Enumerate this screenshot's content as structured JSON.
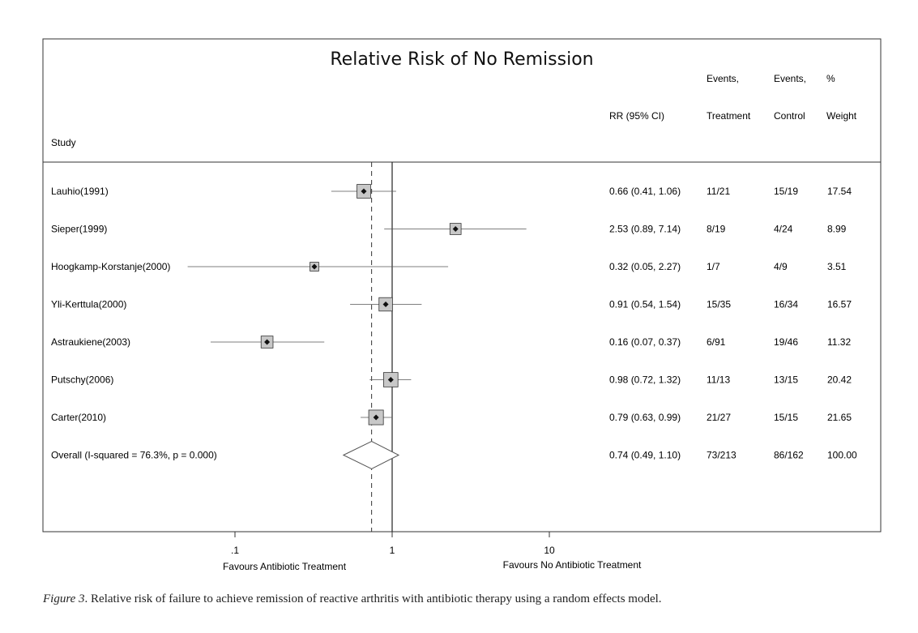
{
  "chart_data": {
    "type": "forest",
    "title": "Relative Risk of No Remission",
    "scale": "log",
    "xlim": [
      0.063,
      20
    ],
    "reference_line": 1,
    "overall_line": 0.74,
    "xticks": [
      {
        "value": 0.1,
        "label": ".1"
      },
      {
        "value": 1,
        "label": "1"
      },
      {
        "value": 10,
        "label": "10"
      }
    ],
    "xlabel_left": "Favours Antibiotic Treatment",
    "xlabel_right": "Favours No Antibiotic Treatment",
    "headers": {
      "study": "Study",
      "rr": "RR (95% CI)",
      "events_t_1": "Events,",
      "events_t_2": "Treatment",
      "events_c_1": "Events,",
      "events_c_2": "Control",
      "weight_1": "%",
      "weight_2": "Weight"
    },
    "studies": [
      {
        "name": "Lauhio(1991)",
        "rr": 0.66,
        "lo": 0.41,
        "hi": 1.06,
        "rr_text": "0.66 (0.41, 1.06)",
        "events_t": "11/21",
        "events_c": "15/19",
        "weight": "17.54"
      },
      {
        "name": "Sieper(1999)",
        "rr": 2.53,
        "lo": 0.89,
        "hi": 7.14,
        "rr_text": "2.53 (0.89, 7.14)",
        "events_t": "8/19",
        "events_c": "4/24",
        "weight": "8.99"
      },
      {
        "name": "Hoogkamp-Korstanje(2000)",
        "rr": 0.32,
        "lo": 0.05,
        "hi": 2.27,
        "rr_text": "0.32 (0.05, 2.27)",
        "events_t": "1/7",
        "events_c": "4/9",
        "weight": "3.51"
      },
      {
        "name": "Yli-Kerttula(2000)",
        "rr": 0.91,
        "lo": 0.54,
        "hi": 1.54,
        "rr_text": "0.91 (0.54, 1.54)",
        "events_t": "15/35",
        "events_c": "16/34",
        "weight": "16.57"
      },
      {
        "name": "Astraukiene(2003)",
        "rr": 0.16,
        "lo": 0.07,
        "hi": 0.37,
        "rr_text": "0.16 (0.07, 0.37)",
        "events_t": "6/91",
        "events_c": "19/46",
        "weight": "11.32"
      },
      {
        "name": "Putschy(2006)",
        "rr": 0.98,
        "lo": 0.72,
        "hi": 1.32,
        "rr_text": "0.98 (0.72, 1.32)",
        "events_t": "11/13",
        "events_c": "13/15",
        "weight": "20.42"
      },
      {
        "name": "Carter(2010)",
        "rr": 0.79,
        "lo": 0.63,
        "hi": 0.99,
        "rr_text": "0.79 (0.63, 0.99)",
        "events_t": "21/27",
        "events_c": "15/15",
        "weight": "21.65"
      }
    ],
    "overall": {
      "name": "Overall  (I-squared = 76.3%, p = 0.000)",
      "rr": 0.74,
      "lo": 0.49,
      "hi": 1.1,
      "rr_text": "0.74 (0.49, 1.10)",
      "events_t": "73/213",
      "events_c": "86/162",
      "weight": "100.00"
    }
  },
  "caption": {
    "label": "Figure 3",
    "text": ". Relative risk of failure to achieve remission of reactive arthritis with antibiotic therapy using a random effects model."
  }
}
